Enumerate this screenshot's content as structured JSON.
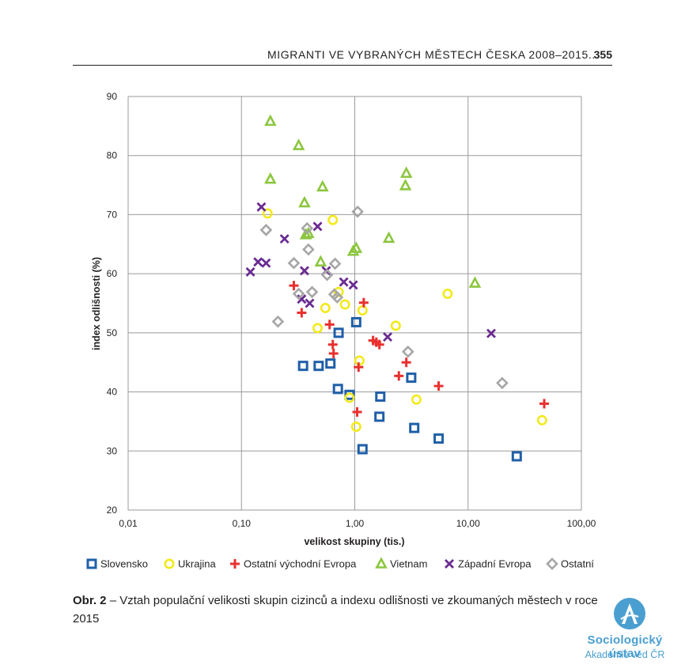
{
  "header": {
    "running_title": "MIGRANTI VE VYBRANÝCH MĚSTECH ČESKA 2008–2015...",
    "page_number": "355"
  },
  "caption": {
    "label": "Obr. 2",
    "text": " – Vztah populační velikosti skupin cizinců a indexu odlišnosti ve zkoumaných městech v roce 2015"
  },
  "logo": {
    "name": "Sociologický ústav",
    "subtitle": "Akademie věd ČR",
    "color": "#4a9fd0"
  },
  "chart_data": {
    "type": "scatter",
    "xlabel": "velikost skupiny (tis.)",
    "ylabel": "index odlišnosti (%)",
    "x_scale": "log",
    "xlim": [
      0.01,
      100
    ],
    "ylim": [
      20,
      90
    ],
    "x_ticks": [
      0.01,
      0.1,
      1,
      10,
      100
    ],
    "x_tick_labels": [
      "0,01",
      "0,10",
      "1,00",
      "10,00",
      "100,00"
    ],
    "y_ticks": [
      20,
      30,
      40,
      50,
      60,
      70,
      80,
      90
    ],
    "y_tick_labels": [
      "20",
      "30",
      "40",
      "50",
      "60",
      "70",
      "80",
      "90"
    ],
    "grid": true,
    "legend_position": "bottom",
    "series": [
      {
        "name": "Slovensko",
        "marker": "square",
        "color": "#1f5fa8",
        "points": [
          [
            0.35,
            44.4
          ],
          [
            0.48,
            44.4
          ],
          [
            0.61,
            44.8
          ],
          [
            0.71,
            40.5
          ],
          [
            0.72,
            50.0
          ],
          [
            0.9,
            39.5
          ],
          [
            1.03,
            51.8
          ],
          [
            1.17,
            30.3
          ],
          [
            1.65,
            35.8
          ],
          [
            1.68,
            39.2
          ],
          [
            3.15,
            42.4
          ],
          [
            3.35,
            33.9
          ],
          [
            5.5,
            32.1
          ],
          [
            26.9,
            29.1
          ]
        ]
      },
      {
        "name": "Ukrajina",
        "marker": "circle",
        "color": "#f2ea1b",
        "points": [
          [
            0.17,
            70.2
          ],
          [
            0.47,
            50.8
          ],
          [
            0.55,
            54.2
          ],
          [
            0.64,
            69.1
          ],
          [
            0.72,
            56.9
          ],
          [
            0.82,
            54.8
          ],
          [
            0.9,
            39.0
          ],
          [
            1.03,
            34.1
          ],
          [
            1.1,
            45.3
          ],
          [
            1.17,
            53.8
          ],
          [
            2.3,
            51.2
          ],
          [
            3.5,
            38.7
          ],
          [
            6.6,
            56.6
          ],
          [
            45.0,
            35.2
          ]
        ]
      },
      {
        "name": "Ostatní východní Evropa",
        "marker": "plus",
        "color": "#e8312f",
        "points": [
          [
            0.29,
            58.0
          ],
          [
            0.34,
            53.4
          ],
          [
            0.6,
            51.4
          ],
          [
            0.64,
            48.0
          ],
          [
            0.65,
            46.5
          ],
          [
            1.05,
            36.6
          ],
          [
            1.08,
            44.2
          ],
          [
            1.2,
            55.1
          ],
          [
            1.45,
            48.7
          ],
          [
            1.55,
            48.4
          ],
          [
            1.65,
            48.0
          ],
          [
            2.45,
            42.7
          ],
          [
            2.85,
            45.0
          ],
          [
            5.5,
            41.0
          ],
          [
            47.0,
            38.0
          ]
        ]
      },
      {
        "name": "Vietnam",
        "marker": "triangle",
        "color": "#8cc63f",
        "points": [
          [
            0.18,
            85.8
          ],
          [
            0.18,
            76.0
          ],
          [
            0.32,
            81.7
          ],
          [
            0.36,
            72.0
          ],
          [
            0.37,
            66.6
          ],
          [
            0.39,
            66.8
          ],
          [
            0.5,
            62.0
          ],
          [
            0.52,
            74.7
          ],
          [
            0.97,
            63.8
          ],
          [
            1.03,
            64.3
          ],
          [
            2.0,
            66.0
          ],
          [
            2.8,
            74.9
          ],
          [
            2.85,
            77.0
          ],
          [
            11.5,
            58.4
          ]
        ]
      },
      {
        "name": "Západní Evropa",
        "marker": "x",
        "color": "#6a2c91",
        "points": [
          [
            0.12,
            60.3
          ],
          [
            0.14,
            62.0
          ],
          [
            0.15,
            71.3
          ],
          [
            0.165,
            61.8
          ],
          [
            0.24,
            65.9
          ],
          [
            0.34,
            55.7
          ],
          [
            0.36,
            60.5
          ],
          [
            0.4,
            55.0
          ],
          [
            0.47,
            68.0
          ],
          [
            0.56,
            60.5
          ],
          [
            0.8,
            58.6
          ],
          [
            0.97,
            58.1
          ],
          [
            1.95,
            49.3
          ],
          [
            16.0,
            49.9
          ]
        ]
      },
      {
        "name": "Ostatní",
        "marker": "diamond",
        "color": "#a6a6a6",
        "points": [
          [
            0.165,
            67.4
          ],
          [
            0.21,
            51.9
          ],
          [
            0.29,
            61.8
          ],
          [
            0.32,
            56.6
          ],
          [
            0.38,
            67.7
          ],
          [
            0.39,
            64.1
          ],
          [
            0.42,
            56.9
          ],
          [
            0.57,
            59.8
          ],
          [
            0.66,
            56.5
          ],
          [
            0.67,
            61.7
          ],
          [
            0.7,
            56.0
          ],
          [
            1.06,
            70.5
          ],
          [
            2.95,
            46.8
          ],
          [
            20.0,
            41.5
          ]
        ]
      }
    ]
  }
}
